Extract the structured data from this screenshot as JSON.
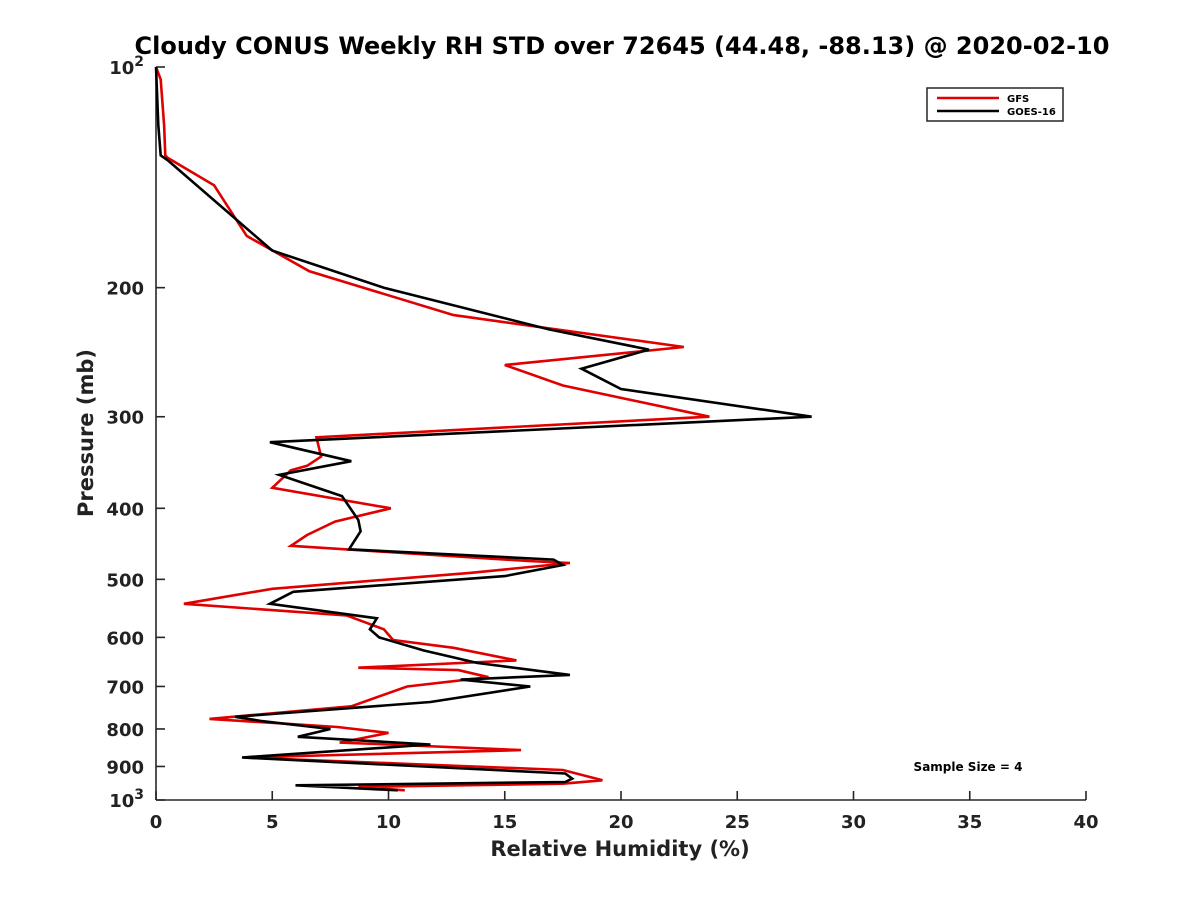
{
  "chart_data": {
    "type": "line",
    "title": "Cloudy CONUS Weekly RH STD over 72645 (44.48, -88.13) @ 2020-02-10",
    "xlabel": "Relative Humidity (%)",
    "ylabel": "Pressure (mb)",
    "xlim": [
      0,
      40
    ],
    "ylim": [
      100,
      1000
    ],
    "y_scale": "log",
    "y_reversed": true,
    "x_ticks": [
      "0",
      "5",
      "10",
      "15",
      "20",
      "25",
      "30",
      "35",
      "40"
    ],
    "y_ticks": [
      {
        "value": 100,
        "label": "10",
        "sup": "2"
      },
      {
        "value": 200,
        "label": "200",
        "sup": ""
      },
      {
        "value": 300,
        "label": "300",
        "sup": ""
      },
      {
        "value": 400,
        "label": "400",
        "sup": ""
      },
      {
        "value": 500,
        "label": "500",
        "sup": ""
      },
      {
        "value": 600,
        "label": "600",
        "sup": ""
      },
      {
        "value": 700,
        "label": "700",
        "sup": ""
      },
      {
        "value": 800,
        "label": "800",
        "sup": ""
      },
      {
        "value": 900,
        "label": "900",
        "sup": ""
      },
      {
        "value": 1000,
        "label": "10",
        "sup": "3"
      }
    ],
    "grid": false,
    "legend_position": "top-right",
    "annotation": "Sample Size = 4",
    "series": [
      {
        "name": "GFS",
        "color": "#e00000",
        "points": [
          [
            0.0,
            100
          ],
          [
            0.2,
            104
          ],
          [
            0.35,
            120
          ],
          [
            0.4,
            132
          ],
          [
            0.5,
            133
          ],
          [
            2.5,
            145
          ],
          [
            3.9,
            170
          ],
          [
            6.6,
            190
          ],
          [
            12.8,
            218
          ],
          [
            22.7,
            241
          ],
          [
            15.0,
            255
          ],
          [
            17.5,
            272
          ],
          [
            23.8,
            300
          ],
          [
            6.9,
            320
          ],
          [
            7.0,
            330
          ],
          [
            7.1,
            340
          ],
          [
            6.5,
            350
          ],
          [
            5.8,
            355
          ],
          [
            5.0,
            375
          ],
          [
            10.1,
            400
          ],
          [
            7.7,
            417
          ],
          [
            6.5,
            435
          ],
          [
            5.8,
            450
          ],
          [
            16.0,
            472
          ],
          [
            17.8,
            475
          ],
          [
            13.5,
            490
          ],
          [
            5.0,
            515
          ],
          [
            1.2,
            540
          ],
          [
            8.2,
            560
          ],
          [
            9.8,
            585
          ],
          [
            10.2,
            605
          ],
          [
            12.8,
            620
          ],
          [
            15.5,
            645
          ],
          [
            8.7,
            660
          ],
          [
            13.0,
            665
          ],
          [
            14.3,
            680
          ],
          [
            10.8,
            700
          ],
          [
            8.4,
            745
          ],
          [
            2.3,
            775
          ],
          [
            7.8,
            795
          ],
          [
            10.0,
            810
          ],
          [
            7.9,
            835
          ],
          [
            10.0,
            840
          ],
          [
            15.7,
            855
          ],
          [
            3.8,
            875
          ],
          [
            17.5,
            910
          ],
          [
            19.2,
            940
          ],
          [
            17.5,
            950
          ],
          [
            8.7,
            960
          ],
          [
            10.7,
            970
          ]
        ]
      },
      {
        "name": "GOES-16",
        "color": "#000000",
        "points": [
          [
            0.0,
            100
          ],
          [
            0.1,
            120
          ],
          [
            0.2,
            132
          ],
          [
            0.5,
            134
          ],
          [
            5.0,
            178
          ],
          [
            9.8,
            200
          ],
          [
            16.9,
            228
          ],
          [
            21.2,
            243
          ],
          [
            18.3,
            258
          ],
          [
            20.0,
            275
          ],
          [
            28.2,
            300
          ],
          [
            4.9,
            325
          ],
          [
            8.4,
            345
          ],
          [
            5.3,
            360
          ],
          [
            8.0,
            385
          ],
          [
            8.7,
            415
          ],
          [
            8.8,
            430
          ],
          [
            8.3,
            455
          ],
          [
            17.1,
            470
          ],
          [
            17.5,
            478
          ],
          [
            15.0,
            495
          ],
          [
            5.9,
            520
          ],
          [
            4.9,
            540
          ],
          [
            9.5,
            565
          ],
          [
            9.2,
            585
          ],
          [
            9.6,
            600
          ],
          [
            11.5,
            625
          ],
          [
            13.8,
            650
          ],
          [
            17.8,
            675
          ],
          [
            13.1,
            685
          ],
          [
            16.1,
            700
          ],
          [
            11.8,
            735
          ],
          [
            3.4,
            770
          ],
          [
            4.5,
            780
          ],
          [
            7.5,
            800
          ],
          [
            6.1,
            820
          ],
          [
            11.8,
            840
          ],
          [
            3.7,
            875
          ],
          [
            17.6,
            920
          ],
          [
            17.9,
            935
          ],
          [
            17.6,
            945
          ],
          [
            6.0,
            955
          ],
          [
            10.4,
            970
          ]
        ]
      }
    ]
  }
}
